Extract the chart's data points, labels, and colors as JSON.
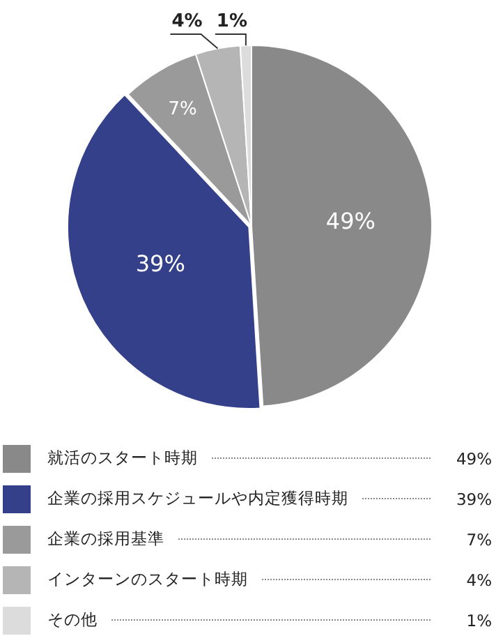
{
  "chart_data": {
    "type": "pie",
    "categories": [
      "就活のスタート時期",
      "企業の採用スケジュールや内定獲得時期",
      "企業の採用基準",
      "インターンのスタート時期",
      "その他"
    ],
    "values": [
      49,
      39,
      7,
      4,
      1
    ],
    "colors": [
      "#898989",
      "#344089",
      "#9a9a9a",
      "#b5b5b5",
      "#dcdcdc"
    ],
    "value_labels": [
      "49%",
      "39%",
      "7%",
      "4%",
      "1%"
    ],
    "legend": "bottom"
  }
}
